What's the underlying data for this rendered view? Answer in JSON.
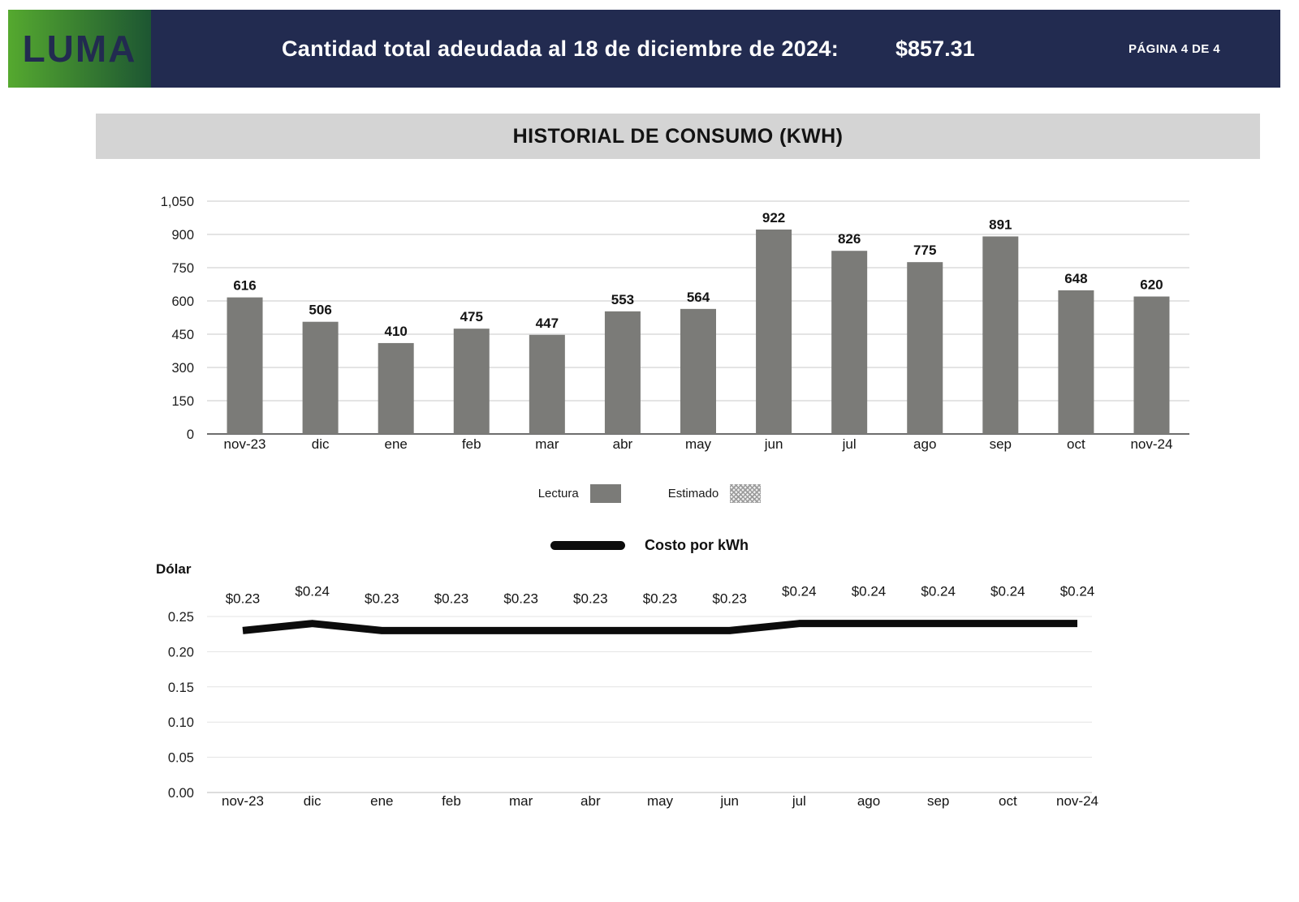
{
  "header": {
    "logo_text": "LUMA",
    "title": "Cantidad total adeudada al 18 de diciembre de 2024:",
    "amount": "$857.31",
    "page_label": "PÁGINA 4 DE 4",
    "colors": {
      "navy": "#222b50",
      "logo_green_start": "#55a92f",
      "logo_green_end": "#1d5632",
      "header_text": "#ffffff"
    }
  },
  "section_title": {
    "text": "HISTORIAL DE CONSUMO (KWH)",
    "bg": "#d4d4d4",
    "color": "#131313"
  },
  "legend": {
    "lectura_label": "Lectura",
    "estimado_label": "Estimado"
  },
  "chart_data": [
    {
      "type": "bar",
      "name": "historial-de-consumo",
      "title": "HISTORIAL DE CONSUMO (KWH)",
      "categories": [
        "nov-23",
        "dic",
        "ene",
        "feb",
        "mar",
        "abr",
        "may",
        "jun",
        "jul",
        "ago",
        "sep",
        "oct",
        "nov-24"
      ],
      "values": [
        616,
        506,
        410,
        475,
        447,
        553,
        564,
        922,
        826,
        775,
        891,
        648,
        620
      ],
      "ylim": [
        0,
        1050
      ],
      "yticks": [
        0,
        150,
        300,
        450,
        600,
        750,
        900,
        1050
      ],
      "ytick_labels": [
        "0",
        "150",
        "300",
        "450",
        "600",
        "750",
        "900",
        "1,050"
      ],
      "bar_color": "#7b7b78",
      "grid": true,
      "legend": [
        {
          "label": "Lectura",
          "style": "solid"
        },
        {
          "label": "Estimado",
          "style": "hatched"
        }
      ],
      "legend_position": "bottom"
    },
    {
      "type": "line",
      "name": "costo-por-kwh",
      "title": "Costo por kWh",
      "ylabel": "Dólar",
      "categories": [
        "nov-23",
        "dic",
        "ene",
        "feb",
        "mar",
        "abr",
        "may",
        "jun",
        "jul",
        "ago",
        "sep",
        "oct",
        "nov-24"
      ],
      "values": [
        0.23,
        0.24,
        0.23,
        0.23,
        0.23,
        0.23,
        0.23,
        0.23,
        0.24,
        0.24,
        0.24,
        0.24,
        0.24
      ],
      "point_labels": [
        "$0.23",
        "$0.24",
        "$0.23",
        "$0.23",
        "$0.23",
        "$0.23",
        "$0.23",
        "$0.23",
        "$0.24",
        "$0.24",
        "$0.24",
        "$0.24",
        "$0.24"
      ],
      "ylim": [
        0,
        0.25
      ],
      "yticks": [
        0,
        0.05,
        0.1,
        0.15,
        0.2,
        0.25
      ],
      "ytick_labels": [
        "0.00",
        "0.05",
        "0.10",
        "0.15",
        "0.20",
        "0.25"
      ],
      "line_color": "#0c0c0c",
      "grid": true,
      "legend_position": "top"
    }
  ]
}
